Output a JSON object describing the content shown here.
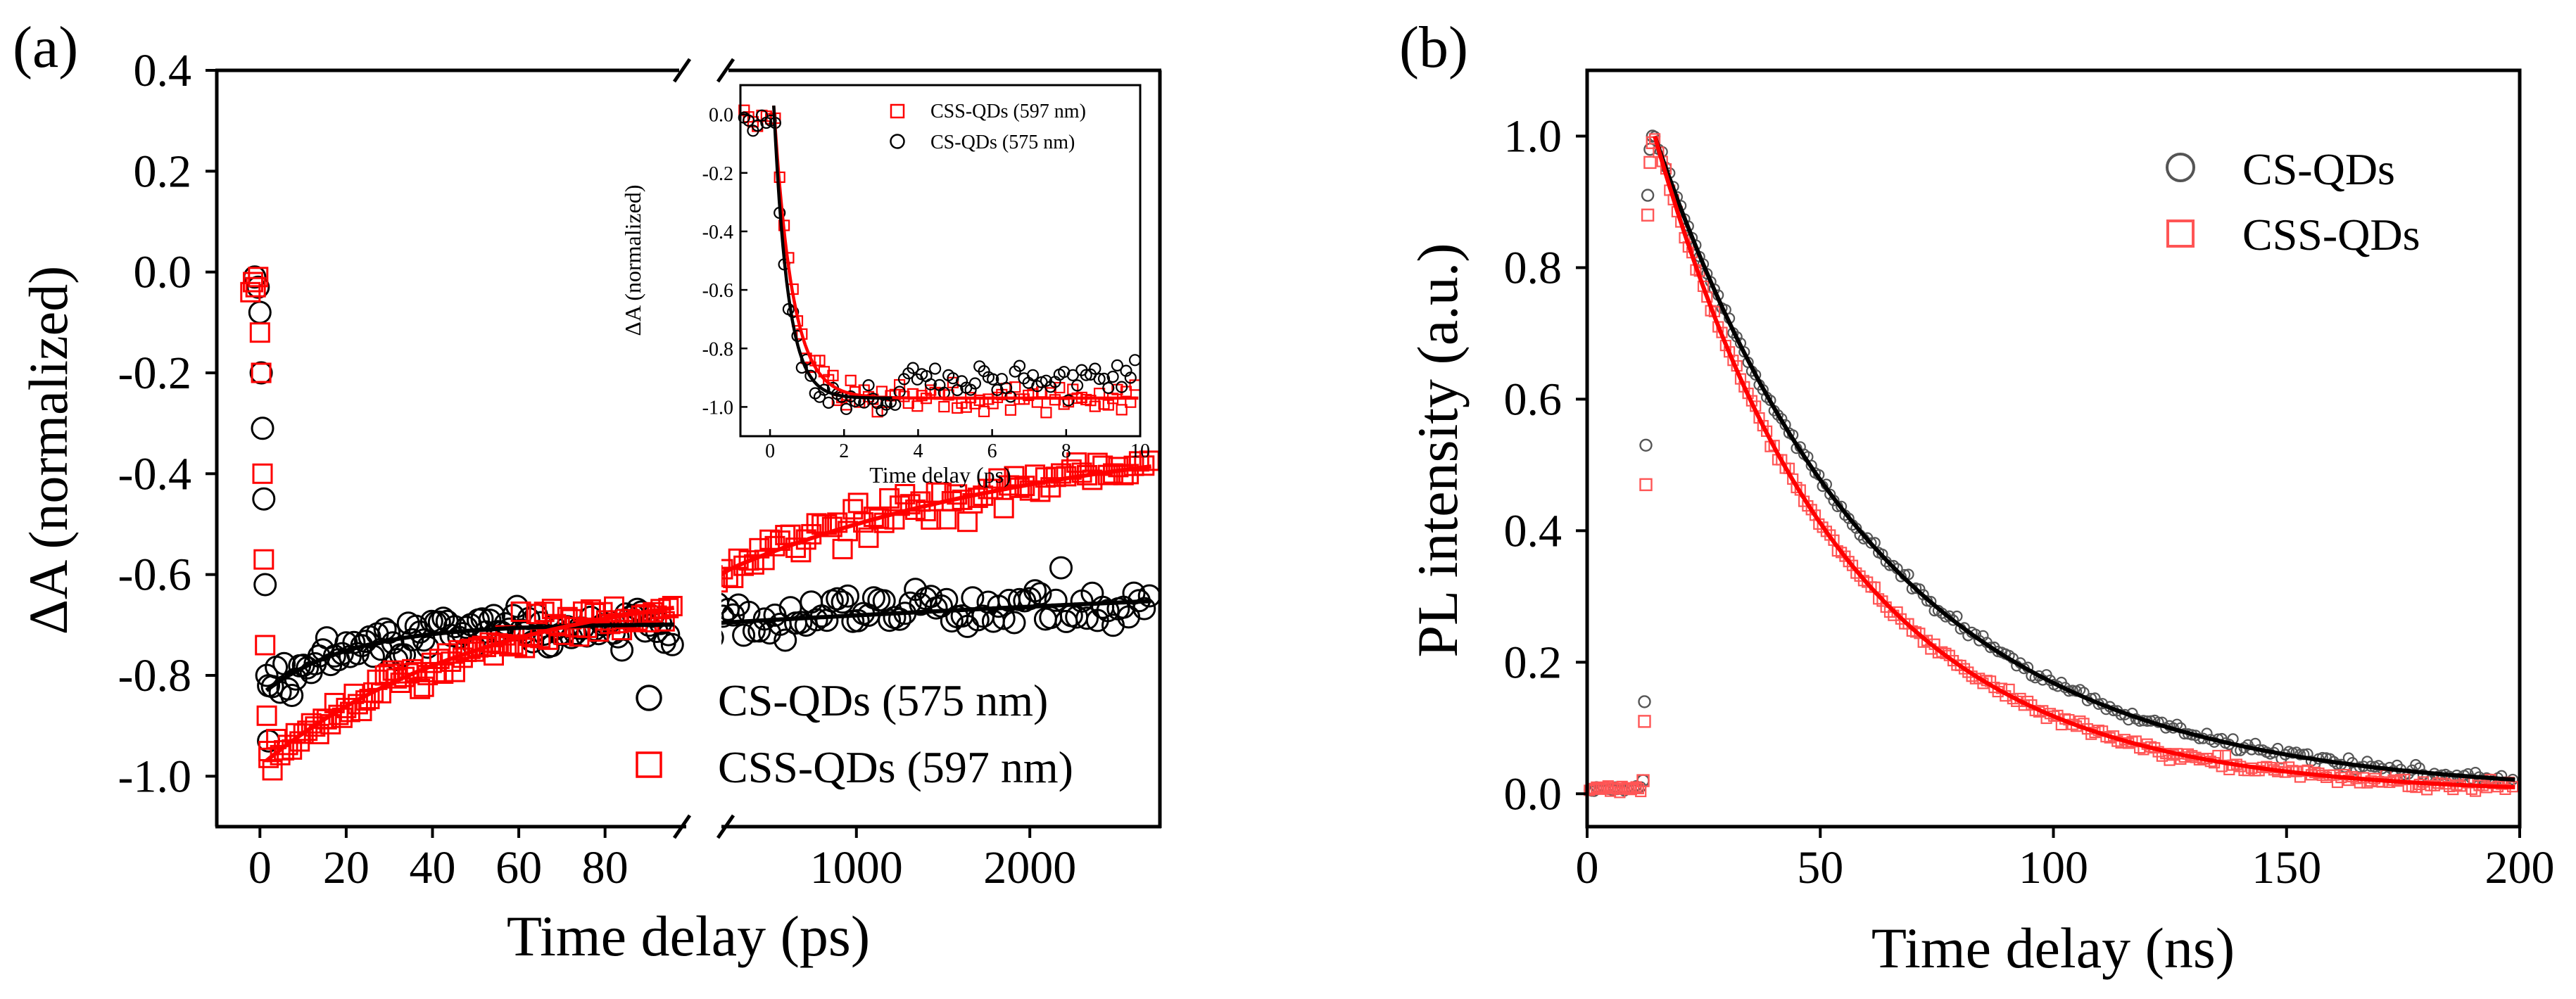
{
  "colors": {
    "cs": "#000000",
    "css": "#ff0000",
    "axis": "#000000"
  },
  "chart_data": [
    {
      "panel": "(a)",
      "type": "scatter",
      "ylabel": "ΔA (normalized)",
      "xlabel": "Time delay (ps)",
      "ylim": [
        -1.1,
        0.4
      ],
      "yticks": [
        -1.0,
        -0.8,
        -0.6,
        -0.4,
        -0.2,
        0.0,
        0.2,
        0.4
      ],
      "ytick_labels": [
        "-1.0",
        "-0.8",
        "-0.6",
        "-0.4",
        "-0.2",
        "0.0",
        "0.2",
        "0.4"
      ],
      "segments": [
        {
          "xlim": [
            -10,
            98
          ],
          "xticks": [
            0,
            20,
            40,
            60,
            80
          ],
          "xtick_labels": [
            "0",
            "20",
            "40",
            "60",
            "80"
          ]
        },
        {
          "xlim": [
            100,
            2750
          ],
          "xticks": [
            1000,
            2000
          ],
          "xtick_labels": [
            "1000",
            "2000"
          ]
        }
      ],
      "legend": {
        "position": "bottom-right",
        "entries": [
          "CS-QDs (575 nm)",
          "CSS-QDs (597 nm)"
        ]
      },
      "series": [
        {
          "name": "CS-QDs (575 nm)",
          "marker": "circle",
          "color": "#000000",
          "fit": {
            "model": "biexponential",
            "y0": -0.5,
            "a1": -0.14,
            "t1": 20,
            "a2": -0.2,
            "t2": 10000,
            "start": 1.5
          },
          "rise": [
            [
              -1.2,
              -0.01
            ],
            [
              -0.4,
              -0.03
            ],
            [
              0.0,
              -0.08
            ],
            [
              0.3,
              -0.2
            ],
            [
              0.6,
              -0.31
            ],
            [
              0.9,
              -0.45
            ],
            [
              1.2,
              -0.62
            ],
            [
              1.6,
              -0.8
            ],
            [
              2.0,
              -0.93
            ]
          ]
        },
        {
          "name": "CSS-QDs (597 nm)",
          "marker": "square",
          "color": "#ff0000",
          "fit": {
            "model": "biexponential",
            "y0": -0.3,
            "a1": -0.35,
            "t1": 50,
            "a2": -0.33,
            "t2": 2000,
            "start": 1.5
          },
          "rise": [
            [
              -2.2,
              -0.04
            ],
            [
              -1.6,
              -0.02
            ],
            [
              -1.0,
              -0.03
            ],
            [
              -0.4,
              -0.01
            ],
            [
              0.0,
              -0.12
            ],
            [
              0.3,
              -0.2
            ],
            [
              0.6,
              -0.4
            ],
            [
              0.9,
              -0.57
            ],
            [
              1.2,
              -0.74
            ],
            [
              1.6,
              -0.88
            ],
            [
              2.0,
              -0.95
            ]
          ]
        }
      ]
    },
    {
      "panel": "inset",
      "type": "scatter",
      "xlabel": "Time delay (ps)",
      "ylabel": "ΔA (normalized)",
      "xlim": [
        -0.8,
        10
      ],
      "ylim": [
        -1.1,
        0.1
      ],
      "xticks": [
        0,
        2,
        4,
        6,
        8,
        10
      ],
      "xtick_labels": [
        "0",
        "2",
        "4",
        "6",
        "8",
        "10"
      ],
      "yticks": [
        0.0,
        -0.2,
        -0.4,
        -0.6,
        -0.8,
        -1.0
      ],
      "ytick_labels": [
        "0.0",
        "-0.2",
        "-0.4",
        "-0.6",
        "-0.8",
        "-1.0"
      ],
      "legend": {
        "position": "top-right",
        "entries": [
          "CSS-QDs (597 nm)",
          "CS-QDs (575 nm)"
        ]
      },
      "series": [
        {
          "name": "CSS-QDs (597 nm)",
          "marker": "square",
          "color": "#ff0000",
          "fit": {
            "model": "exponential",
            "y0": -0.97,
            "amp": 1.0,
            "tau": 0.5,
            "t0": 0.1
          }
        },
        {
          "name": "CS-QDs (575 nm)",
          "marker": "circle",
          "color": "#000000",
          "fit": {
            "model": "exponential",
            "y0": -0.97,
            "amp": 1.0,
            "tau": 0.38,
            "t0": 0.1,
            "end": 3.3
          }
        }
      ]
    },
    {
      "panel": "(b)",
      "type": "scatter",
      "xlabel": "Time delay (ns)",
      "ylabel": "PL intensity (a.u.)",
      "xlim": [
        0,
        200
      ],
      "ylim": [
        -0.05,
        1.1
      ],
      "xticks": [
        0,
        50,
        100,
        150,
        200
      ],
      "xtick_labels": [
        "0",
        "50",
        "100",
        "150",
        "200"
      ],
      "yticks": [
        0.0,
        0.2,
        0.4,
        0.6,
        0.8,
        1.0
      ],
      "ytick_labels": [
        "0.0",
        "0.2",
        "0.4",
        "0.6",
        "0.8",
        "1.0"
      ],
      "legend": {
        "position": "top-right",
        "entries": [
          "CS-QDs",
          "CSS-QDs"
        ]
      },
      "series": [
        {
          "name": "CS-QDs",
          "marker": "circle",
          "color": "#000000",
          "onset": 14.5,
          "tau": 48,
          "rise": [
            [
              12.0,
              0.02
            ],
            [
              12.3,
              0.14
            ],
            [
              12.6,
              0.53
            ],
            [
              13.0,
              0.91
            ],
            [
              13.5,
              0.98
            ],
            [
              14.0,
              1.0
            ]
          ]
        },
        {
          "name": "CSS-QDs",
          "marker": "square",
          "color": "#ff0000",
          "onset": 14.5,
          "tau": 40,
          "rise": [
            [
              12.0,
              0.02
            ],
            [
              12.3,
              0.11
            ],
            [
              12.6,
              0.47
            ],
            [
              13.0,
              0.88
            ],
            [
              13.5,
              0.96
            ],
            [
              14.0,
              0.99
            ]
          ]
        }
      ]
    }
  ]
}
